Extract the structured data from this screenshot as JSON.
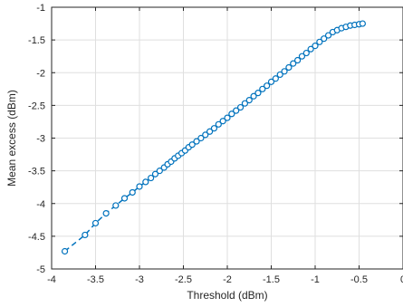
{
  "chart_data": {
    "type": "scatter",
    "title": "",
    "xlabel": "Threshold (dBm)",
    "ylabel": "Mean excess (dBm)",
    "xlim": [
      -4,
      0
    ],
    "ylim": [
      -5,
      -1
    ],
    "xticks": [
      -4,
      -3.5,
      -3,
      -2.5,
      -2,
      -1.5,
      -1,
      -0.5,
      0
    ],
    "xtick_labels": [
      "-4",
      "-3.5",
      "-3",
      "-2.5",
      "-2",
      "-1.5",
      "-1",
      "-0.5",
      "0"
    ],
    "yticks": [
      -5,
      -4.5,
      -4,
      -3.5,
      -3,
      -2.5,
      -2,
      -1.5,
      -1
    ],
    "ytick_labels": [
      "-5",
      "-4.5",
      "-4",
      "-3.5",
      "-3",
      "-2.5",
      "-2",
      "-1.5",
      "-1"
    ],
    "grid": true,
    "marker": "open-circle",
    "fit_line": "dashed",
    "color": "#0072BD",
    "series": [
      {
        "x": [
          -3.85,
          -3.62,
          -3.5,
          -3.38,
          -3.27,
          -3.17,
          -3.08,
          -3.0,
          -2.93,
          -2.87,
          -2.82,
          -2.77,
          -2.72,
          -2.68,
          -2.64,
          -2.6,
          -2.56,
          -2.52,
          -2.48,
          -2.44,
          -2.4,
          -2.35,
          -2.3,
          -2.25,
          -2.2,
          -2.15,
          -2.1,
          -2.05,
          -2.0,
          -1.95,
          -1.9,
          -1.85,
          -1.8,
          -1.75,
          -1.7,
          -1.65,
          -1.6,
          -1.55,
          -1.5,
          -1.45,
          -1.4,
          -1.35,
          -1.3,
          -1.25,
          -1.2,
          -1.15,
          -1.1,
          -1.05,
          -1.0,
          -0.95,
          -0.9,
          -0.85,
          -0.8,
          -0.75,
          -0.7,
          -0.65,
          -0.6,
          -0.55,
          -0.5,
          -0.46
        ],
        "y": [
          -4.73,
          -4.48,
          -4.3,
          -4.15,
          -4.03,
          -3.92,
          -3.83,
          -3.74,
          -3.67,
          -3.61,
          -3.55,
          -3.5,
          -3.45,
          -3.4,
          -3.36,
          -3.31,
          -3.27,
          -3.23,
          -3.19,
          -3.14,
          -3.1,
          -3.05,
          -3.0,
          -2.95,
          -2.9,
          -2.85,
          -2.79,
          -2.74,
          -2.69,
          -2.63,
          -2.58,
          -2.53,
          -2.47,
          -2.42,
          -2.36,
          -2.31,
          -2.25,
          -2.2,
          -2.14,
          -2.09,
          -2.03,
          -1.98,
          -1.92,
          -1.86,
          -1.81,
          -1.75,
          -1.7,
          -1.64,
          -1.59,
          -1.53,
          -1.48,
          -1.43,
          -1.38,
          -1.35,
          -1.32,
          -1.3,
          -1.28,
          -1.27,
          -1.26,
          -1.25
        ]
      }
    ]
  }
}
